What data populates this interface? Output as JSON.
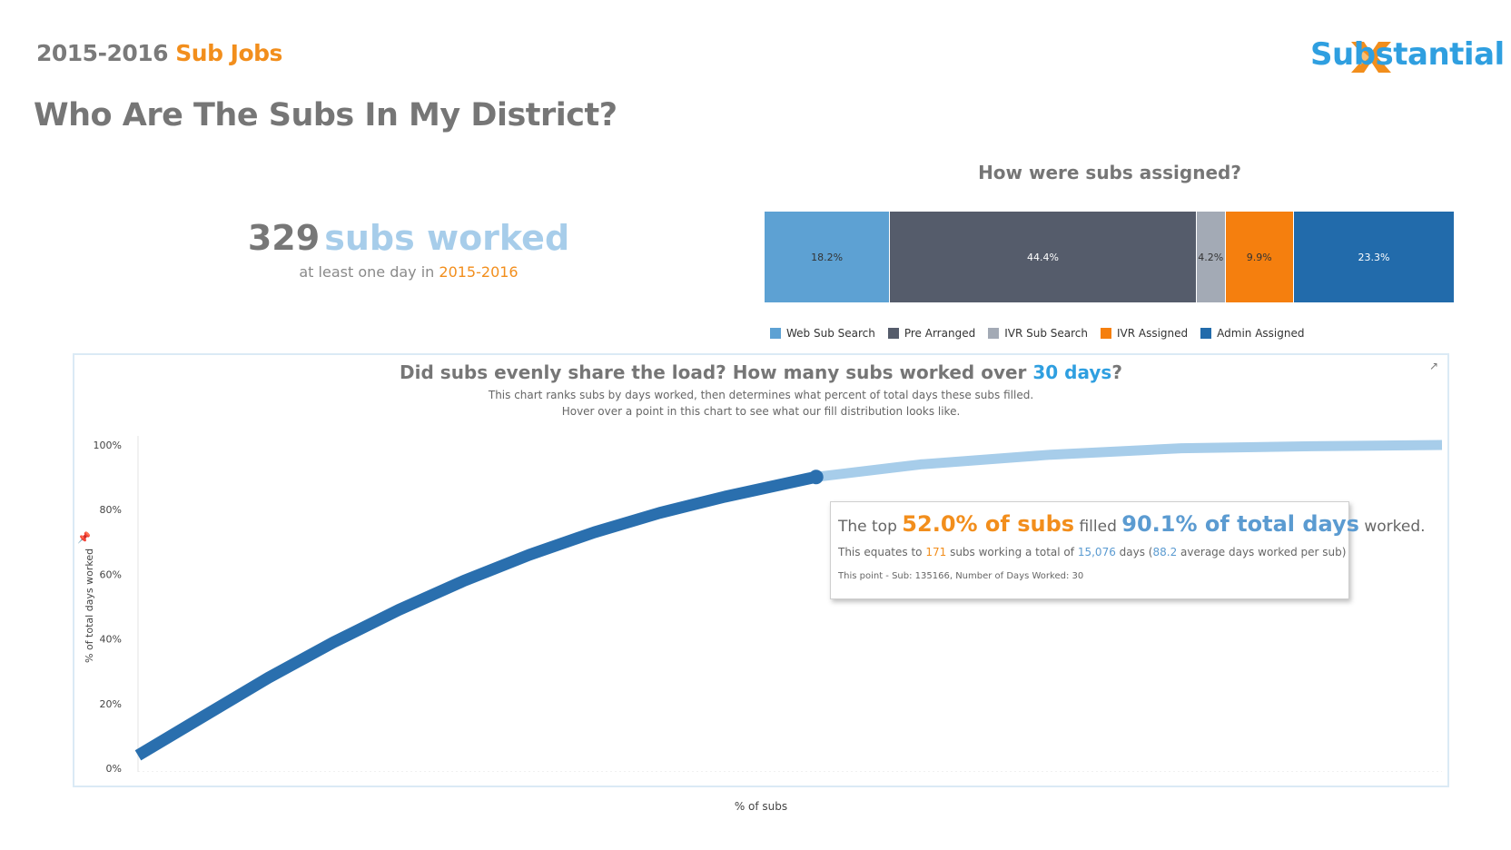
{
  "header": {
    "year": "2015-2016",
    "report_name": "Sub Jobs",
    "title": "Who Are The Subs In My District?"
  },
  "logo": {
    "text": "Substantial"
  },
  "kpi": {
    "count": "329",
    "label": "subs worked",
    "sub_prefix": "at least one day in",
    "sub_year": "2015-2016"
  },
  "colors": {
    "accent_orange": "#f28e1c",
    "accent_blue": "#2f9fe0",
    "curve_dark": "#2a6fae",
    "curve_light": "#a7cdea"
  },
  "assignment": {
    "title": "How were subs assigned?",
    "segments": [
      {
        "name": "Web Sub Search",
        "value": 18.2,
        "label": "18.2%",
        "color": "#5da1d3"
      },
      {
        "name": "Pre Arranged",
        "value": 44.4,
        "label": "44.4%",
        "color": "#555c6b"
      },
      {
        "name": "IVR Sub Search",
        "value": 4.2,
        "label": "4.2%",
        "color": "#a3aab5"
      },
      {
        "name": "IVR Assigned",
        "value": 9.9,
        "label": "9.9%",
        "color": "#f57f0e"
      },
      {
        "name": "Admin Assigned",
        "value": 23.3,
        "label": "23.3%",
        "color": "#226bab"
      }
    ]
  },
  "load_chart": {
    "title_prefix": "Did subs evenly share the load? How many subs worked over",
    "title_hl": "30 days",
    "title_suffix": "?",
    "subtitle_1": "This chart ranks subs by days worked, then determines what percent of total days these subs filled.",
    "subtitle_2": "Hover over a point in this chart to see what our fill distribution looks like.",
    "y_axis_label": "% of total days worked",
    "x_axis_label": "% of subs",
    "y_ticks": [
      "100%",
      "80%",
      "60%",
      "40%",
      "20%",
      "0%"
    ],
    "tooltip": {
      "l1_a": "The top",
      "l1_b": "52.0% of subs",
      "l1_c": "filled",
      "l1_d": "90.1% of total days",
      "l1_e": "worked.",
      "l2_a": "This equates to",
      "l2_b": "171",
      "l2_c": "subs working a total of",
      "l2_d": "15,076",
      "l2_e": "days (",
      "l2_f": "88.2",
      "l2_g": "average days worked per sub)",
      "l3": "This point - Sub: 135166, Number of Days Worked: 30"
    }
  },
  "chart_data": [
    {
      "type": "bar",
      "title": "How were subs assigned?",
      "categories": [
        "Web Sub Search",
        "Pre Arranged",
        "IVR Sub Search",
        "IVR Assigned",
        "Admin Assigned"
      ],
      "values": [
        18.2,
        44.4,
        4.2,
        9.9,
        23.3
      ],
      "legend": "bottom"
    },
    {
      "type": "line",
      "title": "Did subs evenly share the load? How many subs worked over 30 days?",
      "xlabel": "% of subs",
      "ylabel": "% of total days worked",
      "ylim": [
        0,
        100
      ],
      "x": [
        0,
        5,
        10,
        15,
        20,
        25,
        30,
        35,
        40,
        45,
        52,
        60,
        70,
        80,
        90,
        100
      ],
      "y": [
        4,
        16,
        28,
        39,
        49,
        58,
        66,
        73,
        79,
        84,
        90.1,
        94,
        97,
        99,
        99.6,
        100
      ],
      "highlight_point": {
        "x": 52.0,
        "y": 90.1
      },
      "grid": false
    }
  ]
}
